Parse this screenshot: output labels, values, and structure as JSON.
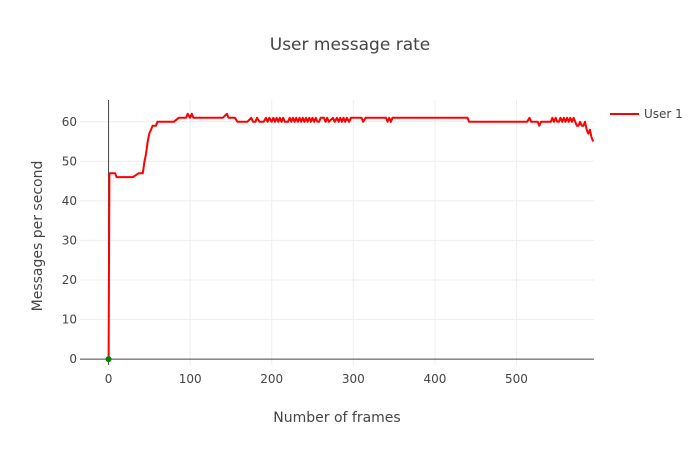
{
  "chart_data": {
    "type": "line",
    "title": "User message rate",
    "xlabel": "Number of frames",
    "ylabel": "Messages per second",
    "xlim": [
      -35,
      595
    ],
    "ylim": [
      -1.5,
      65.5
    ],
    "x_ticks": [
      0,
      100,
      200,
      300,
      400,
      500
    ],
    "y_ticks": [
      0,
      10,
      20,
      30,
      40,
      50,
      60
    ],
    "grid": true,
    "legend": "top-right",
    "series": [
      {
        "name": "User 1",
        "color": "#ff0000",
        "x": [
          0,
          1,
          2,
          3,
          6,
          8,
          10,
          20,
          30,
          37,
          38,
          42,
          44,
          46,
          48,
          50,
          52,
          54,
          56,
          58,
          60,
          66,
          68,
          80,
          86,
          88,
          95,
          97,
          100,
          102,
          104,
          106,
          110,
          120,
          140,
          145,
          147,
          149,
          152,
          155,
          158,
          160,
          170,
          175,
          177,
          180,
          182,
          185,
          190,
          193,
          195,
          197,
          200,
          202,
          204,
          206,
          208,
          210,
          212,
          214,
          216,
          218,
          220,
          222,
          224,
          226,
          228,
          230,
          232,
          234,
          236,
          238,
          240,
          242,
          244,
          246,
          248,
          250,
          252,
          254,
          256,
          258,
          260,
          262,
          264,
          266,
          268,
          270,
          275,
          277,
          280,
          282,
          284,
          286,
          288,
          290,
          292,
          295,
          297,
          300,
          310,
          312,
          315,
          318,
          340,
          342,
          344,
          346,
          348,
          350,
          352,
          354,
          360,
          380,
          400,
          420,
          440,
          442,
          460,
          480,
          500,
          510,
          513,
          516,
          518,
          520,
          524,
          526,
          528,
          530,
          534,
          538,
          540,
          542,
          544,
          546,
          548,
          550,
          552,
          554,
          556,
          558,
          560,
          562,
          564,
          566,
          568,
          570,
          572,
          574,
          576,
          578,
          580,
          582,
          584,
          586,
          588,
          590,
          592,
          594
        ],
        "y": [
          0,
          47,
          47,
          47,
          47,
          47,
          46,
          46,
          46,
          47,
          47,
          47,
          50,
          52,
          55,
          57,
          58,
          59,
          59,
          59,
          60,
          60,
          60,
          60,
          61,
          61,
          61,
          62,
          61,
          62,
          61,
          61,
          61,
          61,
          61,
          62,
          61,
          61,
          61,
          61,
          60,
          60,
          60,
          61,
          60,
          60,
          61,
          60,
          60,
          61,
          60,
          61,
          60,
          61,
          60,
          61,
          60,
          61,
          60,
          61,
          60,
          60,
          60,
          61,
          60,
          61,
          60,
          61,
          60,
          61,
          60,
          61,
          60,
          61,
          60,
          61,
          60,
          61,
          60,
          61,
          60,
          60,
          61,
          61,
          61,
          60,
          61,
          60,
          61,
          60,
          61,
          60,
          61,
          60,
          61,
          60,
          61,
          60,
          61,
          61,
          61,
          60,
          61,
          61,
          61,
          60,
          61,
          60,
          61,
          61,
          61,
          61,
          61,
          61,
          61,
          61,
          61,
          60,
          60,
          60,
          60,
          60,
          60,
          61,
          60,
          60,
          60,
          60,
          59,
          60,
          60,
          60,
          60,
          60,
          61,
          60,
          61,
          60,
          60,
          61,
          60,
          61,
          60,
          61,
          60,
          61,
          60,
          61,
          60,
          59,
          59,
          60,
          59,
          59,
          60,
          58,
          57,
          58,
          56,
          55
        ]
      }
    ],
    "markers": [
      {
        "x": 0,
        "y": 0,
        "color": "#008000"
      }
    ]
  }
}
